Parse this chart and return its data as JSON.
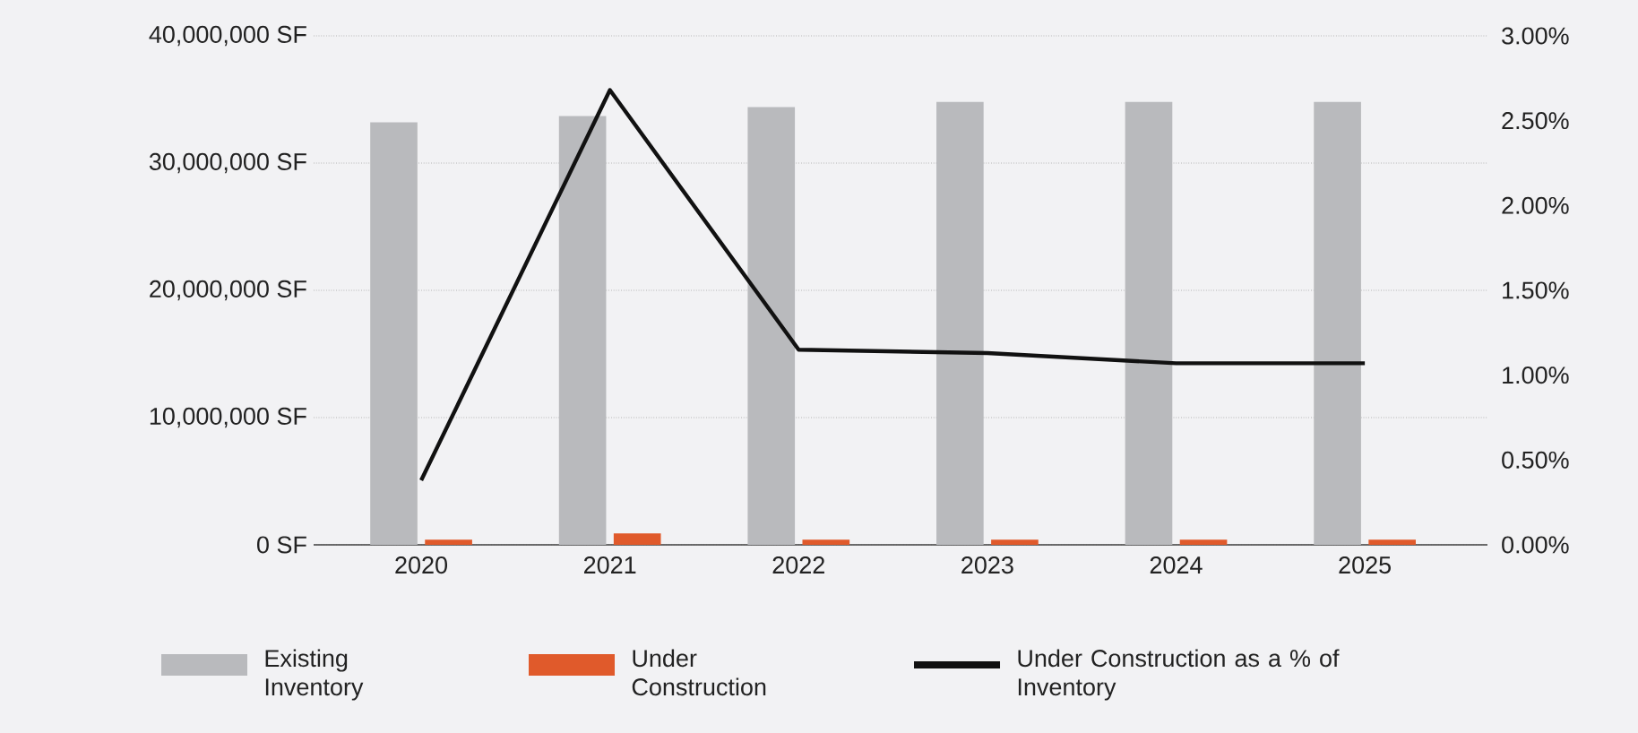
{
  "chart_data": {
    "type": "bar",
    "categories": [
      "2020",
      "2021",
      "2022",
      "2023",
      "2024",
      "2025"
    ],
    "series": [
      {
        "name": "Existing Inventory",
        "color": "#b9babd",
        "values": [
          33200000,
          33700000,
          34400000,
          34800000,
          34800000,
          34800000
        ]
      },
      {
        "name": "Under Construction",
        "color": "#e05a2b",
        "values": [
          400000,
          900000,
          400000,
          400000,
          400000,
          400000
        ]
      },
      {
        "name": "Under Construction as a % of Inventory",
        "type": "line",
        "axis": "y2",
        "color": "#111111",
        "values": [
          0.38,
          2.68,
          1.15,
          1.13,
          1.07,
          1.07
        ]
      }
    ],
    "ylim": [
      0,
      40000000
    ],
    "yticks": [
      {
        "value": 0,
        "label": "0 SF"
      },
      {
        "value": 10000000,
        "label": "10,000,000 SF"
      },
      {
        "value": 20000000,
        "label": "20,000,000 SF"
      },
      {
        "value": 30000000,
        "label": "30,000,000 SF"
      },
      {
        "value": 40000000,
        "label": "40,000,000 SF"
      }
    ],
    "y2lim": [
      0,
      3
    ],
    "y2ticks": [
      {
        "value": 0,
        "label": "0.00%"
      },
      {
        "value": 0.5,
        "label": "0.50%"
      },
      {
        "value": 1,
        "label": "1.00%"
      },
      {
        "value": 1.5,
        "label": "1.50%"
      },
      {
        "value": 2,
        "label": "2.00%"
      },
      {
        "value": 2.5,
        "label": "2.50%"
      },
      {
        "value": 3,
        "label": "3.00%"
      }
    ],
    "grid": "y",
    "legend": "bottom"
  }
}
